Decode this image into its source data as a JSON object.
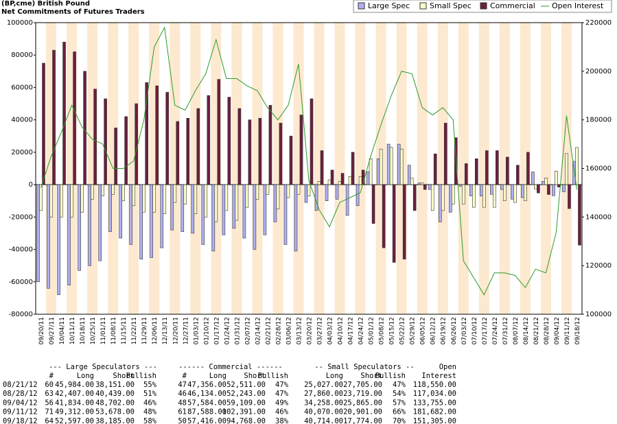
{
  "chart_data": {
    "type": "bar",
    "title": "(BP,cme) British Pound",
    "subtitle": "Net Commitments of Futures Traders",
    "categories": [
      "09/20/11",
      "09/27/11",
      "10/04/11",
      "10/11/11",
      "10/18/11",
      "10/25/11",
      "11/01/11",
      "11/08/11",
      "11/15/11",
      "11/22/11",
      "11/29/11",
      "12/06/11",
      "12/13/11",
      "12/20/11",
      "12/27/11",
      "01/03/12",
      "01/10/12",
      "01/17/12",
      "01/24/12",
      "01/31/12",
      "02/07/12",
      "02/14/12",
      "02/21/12",
      "02/28/12",
      "03/06/12",
      "03/13/12",
      "03/20/12",
      "03/27/12",
      "04/03/12",
      "04/10/12",
      "04/17/12",
      "04/24/12",
      "05/01/12",
      "05/08/12",
      "05/15/12",
      "05/22/12",
      "05/29/12",
      "06/05/12",
      "06/12/12",
      "06/19/12",
      "06/26/12",
      "07/03/12",
      "07/10/12",
      "07/17/12",
      "07/24/12",
      "07/31/12",
      "08/07/12",
      "08/14/12",
      "08/21/12",
      "08/28/12",
      "09/04/12",
      "09/11/12",
      "09/18/12"
    ],
    "series": [
      {
        "name": "Large Spec",
        "color": "#b0b0f0",
        "values": [
          -60000,
          -64000,
          -68000,
          -62000,
          -53000,
          -50000,
          -47000,
          -29000,
          -33000,
          -37000,
          -46000,
          -45000,
          -39000,
          -28000,
          -29000,
          -30000,
          -37000,
          -41000,
          -31000,
          -27000,
          -33000,
          -40000,
          -31000,
          -23000,
          -37000,
          -41000,
          -11000,
          -16000,
          -10000,
          -9000,
          -19000,
          -13000,
          8000,
          16000,
          25000,
          25000,
          12000,
          1000,
          -3000,
          -23000,
          -17000,
          -1000,
          -7000,
          -7000,
          -6000,
          -3000,
          -9000,
          -8000,
          7833,
          1968,
          -6868,
          -4366,
          14412
        ]
      },
      {
        "name": "Small Spec",
        "color": "#ffffc8",
        "values": [
          -16000,
          -20000,
          -20000,
          -20000,
          -17000,
          -9000,
          -7000,
          -6000,
          -10000,
          -13000,
          -17000,
          -17000,
          -18000,
          -11000,
          -12000,
          -18000,
          -20000,
          -23000,
          -16000,
          -22000,
          -14000,
          -9000,
          -6000,
          -15000,
          -8000,
          -6000,
          -7000,
          2000,
          3000,
          2000,
          5000,
          5000,
          16000,
          22000,
          23000,
          22000,
          4000,
          1000,
          -16000,
          -16000,
          -12000,
          -12000,
          -14000,
          -14000,
          -14000,
          -10000,
          -11000,
          -10000,
          -2678,
          4141,
          8393,
          19169,
          22940
        ]
      },
      {
        "name": "Commercial",
        "color": "#6b1f3f",
        "values": [
          75000,
          83000,
          88000,
          82000,
          70000,
          59000,
          53000,
          35000,
          42000,
          50000,
          63000,
          61000,
          57000,
          39000,
          41000,
          47000,
          55000,
          65000,
          54000,
          47000,
          40000,
          41000,
          49000,
          38000,
          30000,
          43000,
          53000,
          21000,
          9000,
          7000,
          20000,
          9000,
          -24000,
          -39000,
          -48000,
          -46000,
          -16000,
          -3000,
          19000,
          38000,
          29000,
          13000,
          16000,
          21000,
          21000,
          17000,
          12000,
          20000,
          -5155,
          -6109,
          -1525,
          -14803,
          -37352
        ]
      },
      {
        "name": "Open Interest",
        "color": "#2a9a2a",
        "axis": "y2",
        "type": "line",
        "values": [
          152000,
          165000,
          175000,
          186000,
          177000,
          172000,
          170000,
          160000,
          160000,
          163000,
          180000,
          210000,
          218000,
          186000,
          184000,
          192000,
          199000,
          213000,
          197000,
          197000,
          194000,
          192000,
          185000,
          180000,
          186000,
          203000,
          155000,
          143000,
          136000,
          146000,
          148000,
          150000,
          165000,
          178000,
          190000,
          200000,
          199000,
          185000,
          182000,
          185000,
          180000,
          122000,
          115000,
          108000,
          117000,
          117000,
          116000,
          111000,
          118550,
          117034,
          133755,
          181682,
          151305
        ]
      }
    ],
    "ylim": [
      -80000,
      100000
    ],
    "yticks": [
      -80000,
      -60000,
      -40000,
      -20000,
      0,
      20000,
      40000,
      60000,
      80000,
      100000
    ],
    "y2lim": [
      100000,
      220000
    ],
    "y2ticks": [
      100000,
      120000,
      140000,
      160000,
      180000,
      200000,
      220000
    ],
    "grid": false,
    "band_color": "#fde9d0"
  },
  "table": {
    "group_headers": [
      "--- Large Speculators ---",
      "------ Commercial ------",
      "-- Small Speculators --",
      "Open"
    ],
    "columns": [
      "#",
      "Long",
      "Short",
      "Bullish",
      "#",
      "Long",
      "Short",
      "Bullish",
      "Long",
      "Short",
      "Bullish",
      "Interest"
    ],
    "rows": [
      [
        "08/21/12",
        "60",
        "45,984.00",
        "38,151.00",
        "55%",
        "47",
        "47,356.00",
        "52,511.00",
        "47%",
        "25,027.00",
        "27,705.00",
        "47%",
        "118,550.00"
      ],
      [
        "08/28/12",
        "63",
        "42,407.00",
        "40,439.00",
        "51%",
        "46",
        "46,134.00",
        "52,243.00",
        "47%",
        "27,860.00",
        "23,719.00",
        "54%",
        "117,034.00"
      ],
      [
        "09/04/12",
        "56",
        "41,834.00",
        "48,702.00",
        "46%",
        "48",
        "57,584.00",
        "59,109.00",
        "49%",
        "34,258.00",
        "25,865.00",
        "57%",
        "133,755.00"
      ],
      [
        "09/11/12",
        "71",
        "49,312.00",
        "53,678.00",
        "48%",
        "61",
        "87,588.00",
        "102,391.00",
        "46%",
        "40,070.00",
        "20,901.00",
        "66%",
        "181,682.00"
      ],
      [
        "09/18/12",
        "64",
        "52,597.00",
        "38,185.00",
        "58%",
        "50",
        "57,416.00",
        "94,768.00",
        "38%",
        "40,714.00",
        "17,774.00",
        "70%",
        "151,305.00"
      ]
    ]
  }
}
